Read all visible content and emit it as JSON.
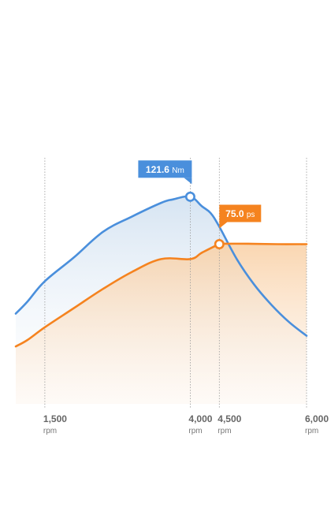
{
  "chart_data": {
    "type": "area",
    "x_unit": "rpm",
    "xlim": [
      1000,
      6000
    ],
    "ylim_power": [
      0,
      120
    ],
    "ylim_torque": [
      0,
      150
    ],
    "x_ticks": [
      {
        "value": 1500,
        "label": "1,500",
        "unit": "rpm"
      },
      {
        "value": 4000,
        "label": "4,000",
        "unit": "rpm"
      },
      {
        "value": 4500,
        "label": "4,500",
        "unit": "rpm"
      },
      {
        "value": 6000,
        "label": "6,000",
        "unit": "rpm"
      }
    ],
    "series": [
      {
        "key": "torque",
        "unit": "Nm",
        "color": "#4a8fdc",
        "fill": "#dde9f5",
        "points": [
          [
            1000,
            53
          ],
          [
            1200,
            60
          ],
          [
            1500,
            72
          ],
          [
            2000,
            86
          ],
          [
            2500,
            101
          ],
          [
            3000,
            110
          ],
          [
            3500,
            118
          ],
          [
            3700,
            120
          ],
          [
            4000,
            121.6
          ],
          [
            4200,
            116
          ],
          [
            4350,
            112
          ],
          [
            4500,
            104
          ],
          [
            4800,
            85
          ],
          [
            5100,
            70
          ],
          [
            5400,
            58
          ],
          [
            5700,
            48
          ],
          [
            6000,
            40
          ]
        ]
      },
      {
        "key": "power",
        "unit": "ps",
        "color": "#f5831f",
        "fill": "#fbd9b8",
        "points": [
          [
            1000,
            27
          ],
          [
            1200,
            30
          ],
          [
            1500,
            36
          ],
          [
            2000,
            45
          ],
          [
            2500,
            54
          ],
          [
            3000,
            62
          ],
          [
            3500,
            68
          ],
          [
            4000,
            68
          ],
          [
            4200,
            71
          ],
          [
            4500,
            75
          ],
          [
            4600,
            75.2
          ],
          [
            5000,
            75.2
          ],
          [
            5500,
            75.0
          ],
          [
            6000,
            75.0
          ]
        ]
      }
    ],
    "callouts": [
      {
        "series": "torque",
        "x": 4000,
        "value": "121.6",
        "unit": "Nm",
        "color": "#4a8fdc"
      },
      {
        "series": "power",
        "x": 4500,
        "value": "75.0",
        "unit": "ps",
        "color": "#f5831f"
      }
    ]
  }
}
